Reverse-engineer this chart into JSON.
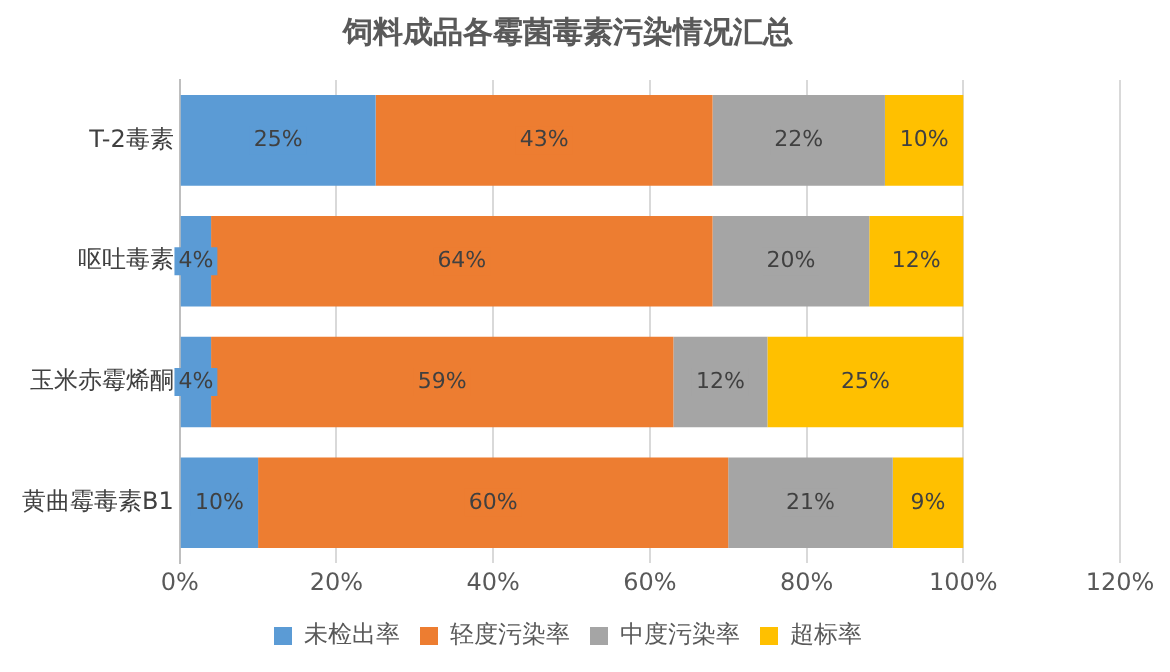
{
  "chart_data": {
    "type": "bar",
    "title": "饲料成品各霉菌毒素污染情况汇总",
    "orientation": "horizontal",
    "stacked": true,
    "categories": [
      "T-2毒素",
      "呕吐毒素",
      "玉米赤霉烯酮",
      "黄曲霉毒素B1"
    ],
    "series": [
      {
        "name": "未检出率",
        "color": "#5b9bd5",
        "values": [
          25,
          4,
          4,
          10
        ],
        "value_labels": [
          "25%",
          "4%",
          "4%",
          "10%"
        ]
      },
      {
        "name": "轻度污染率",
        "color": "#ed7d31",
        "values": [
          43,
          64,
          59,
          60
        ],
        "value_labels": [
          "43%",
          "64%",
          "59%",
          "60%"
        ]
      },
      {
        "name": "中度污染率",
        "color": "#a5a5a5",
        "values": [
          22,
          20,
          12,
          21
        ],
        "value_labels": [
          "22%",
          "20%",
          "12%",
          "21%"
        ]
      },
      {
        "name": "超标率",
        "color": "#ffc000",
        "values": [
          10,
          12,
          25,
          9
        ],
        "value_labels": [
          "10%",
          "12%",
          "25%",
          "9%"
        ]
      }
    ],
    "xlim": [
      0,
      120
    ],
    "xticks": [
      {
        "value": 0,
        "label": "0%"
      },
      {
        "value": 20,
        "label": "20%"
      },
      {
        "value": 40,
        "label": "40%"
      },
      {
        "value": 60,
        "label": "60%"
      },
      {
        "value": 80,
        "label": "80%"
      },
      {
        "value": 100,
        "label": "100%"
      },
      {
        "value": 120,
        "label": "120%"
      }
    ],
    "grid": "x",
    "legend": "bottom"
  }
}
